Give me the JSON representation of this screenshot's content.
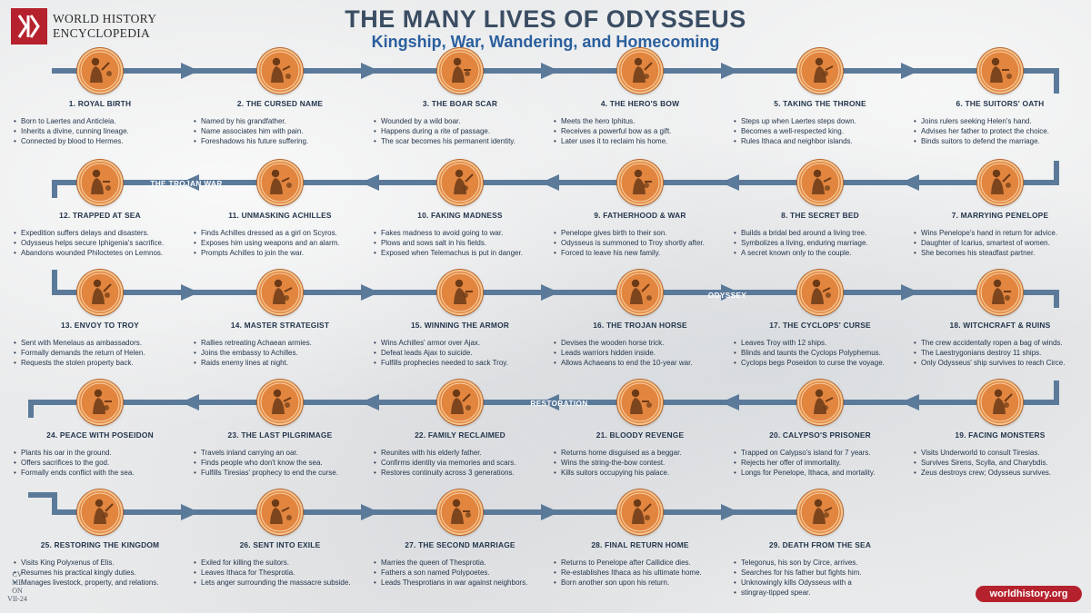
{
  "header": {
    "logo_text_line1": "WORLD HISTORY",
    "logo_text_line2": "ENCYCLOPEDIA",
    "title": "THE MANY LIVES OF ODYSSEUS",
    "subtitle": "Kingship, War, Wandering, and Homecoming"
  },
  "bands": {
    "trojan_war": "THE TROJAN WAR",
    "odyssey": "ODYSSEY",
    "restoration": "RESTORATION"
  },
  "colors": {
    "track": "#5b7a9a",
    "medal": "#e2853f",
    "title": "#3a4d63",
    "subtitle": "#2a5f9e",
    "brand": "#b5222d"
  },
  "stages": [
    {
      "label": "1. ROYAL BIRTH",
      "icon": "mother-and-child-icon",
      "bullets": [
        "Born to Laertes and Anticleia.",
        "Inherits a divine, cunning lineage.",
        "Connected by blood to Hermes."
      ]
    },
    {
      "label": "2. THE CURSED NAME",
      "icon": "naming-scene-icon",
      "bullets": [
        "Named by his grandfather.",
        "Name associates him with pain.",
        "Foreshadows his future suffering."
      ]
    },
    {
      "label": "3. THE BOAR SCAR",
      "icon": "boar-hunter-icon",
      "bullets": [
        "Wounded by a wild boar.",
        "Happens during a rite of passage.",
        "The scar becomes his permanent identity."
      ]
    },
    {
      "label": "4. THE HERO'S BOW",
      "icon": "bow-gift-icon",
      "bullets": [
        "Meets the hero Iphitus.",
        "Receives a powerful bow as a gift.",
        "Later uses it to reclaim his home."
      ]
    },
    {
      "label": "5. TAKING THE THRONE",
      "icon": "enthroned-king-icon",
      "bullets": [
        "Steps up when Laertes steps down.",
        "Becomes a well-respected king.",
        "Rules Ithaca and neighbor islands."
      ]
    },
    {
      "label": "6. THE SUITORS' OATH",
      "icon": "oath-scene-icon",
      "bullets": [
        "Joins rulers seeking Helen's hand.",
        "Advises her father to protect the choice.",
        "Binds suitors to defend the marriage."
      ]
    },
    {
      "label": "7. MARRYING PENELOPE",
      "icon": "wedding-couple-icon",
      "bullets": [
        "Wins Penelope's hand in return for advice.",
        "Daughter of Icarius, smartest of women.",
        "She becomes his steadfast partner."
      ]
    },
    {
      "label": "8. THE SECRET BED",
      "icon": "olive-tree-bed-icon",
      "bullets": [
        "Builds a bridal bed around a living tree.",
        "Symbolizes a living, enduring marriage.",
        "A secret known only to the couple."
      ]
    },
    {
      "label": "9. FATHERHOOD & WAR",
      "icon": "father-and-child-icon",
      "bullets": [
        "Penelope gives birth to their son.",
        "Odysseus is summoned to Troy shortly after.",
        "Forced to leave his new family."
      ]
    },
    {
      "label": "10. FAKING MADNESS",
      "icon": "plow-icon",
      "bullets": [
        "Fakes madness to avoid going to war.",
        "Plows and sows salt in his fields.",
        "Exposed when Telemachus is put in danger."
      ]
    },
    {
      "label": "11. UNMASKING ACHILLES",
      "icon": "disguised-achilles-icon",
      "bullets": [
        "Finds Achilles dressed as a girl on Scyros.",
        "Exposes him using weapons and an alarm.",
        "Prompts Achilles to join the war."
      ]
    },
    {
      "label": "12. TRAPPED AT SEA",
      "icon": "sacrifice-scene-icon",
      "bullets": [
        "Expedition suffers delays and disasters.",
        "Odysseus helps secure Iphigenia's sacrifice.",
        "Abandons wounded Philoctetes on Lemnos."
      ]
    },
    {
      "label": "13. ENVOY TO TROY",
      "icon": "envoys-icon",
      "bullets": [
        "Sent with Menelaus as ambassadors.",
        "Formally demands the return of Helen.",
        "Requests the stolen property back."
      ]
    },
    {
      "label": "14. MASTER STRATEGIST",
      "icon": "warriors-icon",
      "bullets": [
        "Rallies retreating Achaean armies.",
        "Joins the embassy to Achilles.",
        "Raids enemy lines at night."
      ]
    },
    {
      "label": "15. WINNING THE ARMOR",
      "icon": "helmeted-warrior-icon",
      "bullets": [
        "Wins Achilles' armor over Ajax.",
        "Defeat leads Ajax to suicide.",
        "Fulfills prophecies needed to sack Troy."
      ]
    },
    {
      "label": "16. THE TROJAN HORSE",
      "icon": "trojan-horse-icon",
      "bullets": [
        "Devises the wooden horse trick.",
        "Leads warriors hidden inside.",
        "Allows Achaeans to end the 10-year war."
      ]
    },
    {
      "label": "17. THE CYCLOPS' CURSE",
      "icon": "cyclops-icon",
      "bullets": [
        "Leaves Troy with 12 ships.",
        "Blinds and taunts the Cyclops Polyphemus.",
        "Cyclops begs Poseidon to curse the voyage."
      ]
    },
    {
      "label": "18. WITCHCRAFT & RUINS",
      "icon": "circe-icon",
      "bullets": [
        "The crew accidentally ropen a bag of winds.",
        "The Laestrygonians destroy 11 ships.",
        "Only Odysseus' ship survives to reach Circe."
      ]
    },
    {
      "label": "19. FACING MONSTERS",
      "icon": "sirens-icon",
      "bullets": [
        "Visits Underworld to consult Tiresias.",
        "Survives Sirens, Scylla, and Charybdis.",
        "Zeus destroys crew; Odysseus survives."
      ]
    },
    {
      "label": "20. CALYPSO'S PRISONER",
      "icon": "calypso-icon",
      "bullets": [
        "Trapped on Calypso's island for 7 years.",
        "Rejects her offer of immortality.",
        "Longs for Penelope, Ithaca, and mortality."
      ]
    },
    {
      "label": "21. BLOODY REVENGE",
      "icon": "archer-icon",
      "bullets": [
        "Returns home disguised as a beggar.",
        "Wins the string-the-bow contest.",
        "Kills suitors occupying his palace."
      ]
    },
    {
      "label": "22. FAMILY RECLAIMED",
      "icon": "reunion-icon",
      "bullets": [
        "Reunites with his elderly father.",
        "Confirms identity via memories and scars.",
        "Restores continuity across 3 generations."
      ]
    },
    {
      "label": "23. THE LAST PILGRIMAGE",
      "icon": "traveler-with-oar-icon",
      "bullets": [
        "Travels inland carrying an oar.",
        "Finds people who don't know the sea.",
        "Fulfills Tiresias' prophecy to end the curse."
      ]
    },
    {
      "label": "24. PEACE WITH POSEIDON",
      "icon": "poseidon-icon",
      "bullets": [
        "Plants his oar in the ground.",
        "Offers sacrifices to the god.",
        "Formally ends conflict with the sea."
      ]
    },
    {
      "label": "25. RESTORING THE KINGDOM",
      "icon": "king-visit-icon",
      "bullets": [
        "Visits King Polyxenus of Elis.",
        "Resumes his practical kingly duties.",
        "Manages livestock, property, and relations."
      ]
    },
    {
      "label": "26. SENT INTO EXILE",
      "icon": "exile-icon",
      "bullets": [
        "Exiled for killing the suitors.",
        "Leaves Ithaca for Thesprotia.",
        "Lets anger surrounding the massacre subside."
      ]
    },
    {
      "label": "27. THE SECOND MARRIAGE",
      "icon": "queen-icon",
      "bullets": [
        "Marries the queen of Thesprotia.",
        "Fathers a son named Polypoetes.",
        "Leads Thesprotians in war against neighbors."
      ]
    },
    {
      "label": "28. FINAL RETURN HOME",
      "icon": "embrace-icon",
      "bullets": [
        "Returns to Penelope after Callidice dies.",
        "Re-establishes Ithaca as his ultimate home.",
        "Born another son upon his return."
      ]
    },
    {
      "label": "29. DEATH FROM THE SEA",
      "icon": "spear-wielder-icon",
      "bullets": [
        "Telegonus, his son by Circe, arrives.",
        "Searches for his father but fights him.",
        "Unknowingly kills Odysseus with a",
        "stingray-tipped spear."
      ]
    }
  ],
  "footer": {
    "url": "worldhistory.org",
    "signature": [
      "CV",
      "ME",
      "ON",
      "VII-24"
    ]
  }
}
